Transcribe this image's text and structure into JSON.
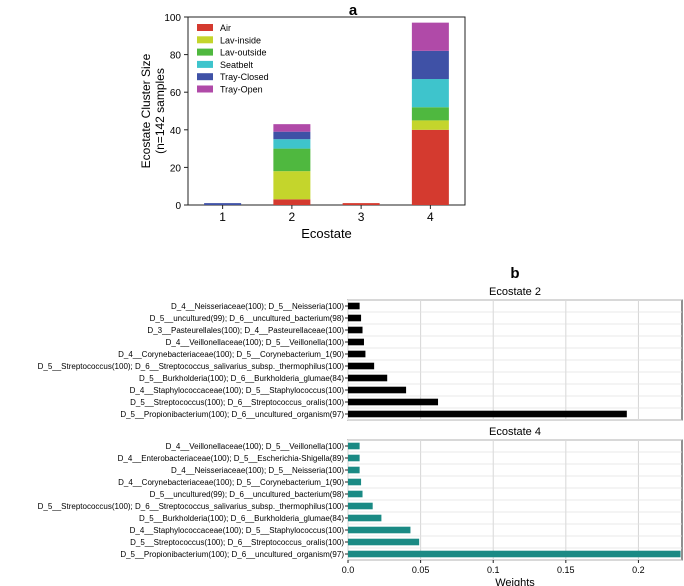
{
  "panel_labels": {
    "a": "a",
    "b": "b"
  },
  "chart_data": [
    {
      "type": "bar",
      "stacked": true,
      "panel": "a",
      "title": "",
      "xlabel": "Ecostate",
      "ylabel_lines": [
        "Ecostate Cluster Size",
        "(n=142 samples"
      ],
      "categories": [
        "1",
        "2",
        "3",
        "4"
      ],
      "ylim": [
        0,
        100
      ],
      "yticks": [
        0,
        20,
        40,
        60,
        80,
        100
      ],
      "legend_position": "top-left",
      "series": [
        {
          "name": "Air",
          "color": "#d43a2f",
          "values": [
            0,
            3,
            1,
            40
          ]
        },
        {
          "name": "Lav-inside",
          "color": "#c4d52c",
          "values": [
            0,
            15,
            0,
            5
          ]
        },
        {
          "name": "Lav-outside",
          "color": "#4fb83f",
          "values": [
            0,
            12,
            0,
            7
          ]
        },
        {
          "name": "Seatbelt",
          "color": "#3ec4cc",
          "values": [
            0,
            5,
            0,
            15
          ]
        },
        {
          "name": "Tray-Closed",
          "color": "#3f51a6",
          "values": [
            1,
            4,
            0,
            15
          ]
        },
        {
          "name": "Tray-Open",
          "color": "#b04aa8",
          "values": [
            0,
            4,
            0,
            15
          ]
        }
      ]
    },
    {
      "type": "barh",
      "panel": "b",
      "title": "Ecostate 2",
      "color": "#000000",
      "xlim": [
        0,
        0.23
      ],
      "categories": [
        "D_4__Neisseriaceae(100); D_5__Neisseria(100)",
        "D_5__uncultured(99); D_6__uncultured_bacterium(98)",
        "D_3__Pasteurellales(100); D_4__Pasteurellaceae(100)",
        "D_4__Veillonellaceae(100); D_5__Veillonella(100)",
        "D_4__Corynebacteriaceae(100); D_5__Corynebacterium_1(90)",
        "D_5__Streptococcus(100); D_6__Streptococcus_salivarius_subsp._thermophilus(100)",
        "D_5__Burkholderia(100); D_6__Burkholderia_glumae(84)",
        "D_4__Staphylococcaceae(100); D_5__Staphylococcus(100)",
        "D_5__Streptococcus(100); D_6__Streptococcus_oralis(100)",
        "D_5__Propionibacterium(100); D_6__uncultured_organism(97)"
      ],
      "values": [
        0.008,
        0.009,
        0.01,
        0.011,
        0.012,
        0.018,
        0.027,
        0.04,
        0.062,
        0.192
      ]
    },
    {
      "type": "barh",
      "panel": "b",
      "title": "Ecostate 4",
      "color": "#1a8a84",
      "xlabel": "Weights",
      "xlim": [
        0,
        0.23
      ],
      "xticks": [
        0.0,
        0.05,
        0.1,
        0.15,
        0.2
      ],
      "xtick_labels": [
        "0.0",
        "0.05",
        "0.1",
        "0.15",
        "0.2"
      ],
      "categories": [
        "D_4__Veillonellaceae(100); D_5__Veillonella(100)",
        "D_4__Enterobacteriaceae(100); D_5__Escherichia-Shigella(89)",
        "D_4__Neisseriaceae(100); D_5__Neisseria(100)",
        "D_4__Corynebacteriaceae(100); D_5__Corynebacterium_1(90)",
        "D_5__uncultured(99); D_6__uncultured_bacterium(98)",
        "D_5__Streptococcus(100); D_6__Streptococcus_salivarius_subsp._thermophilus(100)",
        "D_5__Burkholderia(100); D_6__Burkholderia_glumae(84)",
        "D_4__Staphylococcaceae(100); D_5__Staphylococcus(100)",
        "D_5__Streptococcus(100); D_6__Streptococcus_oralis(100)",
        "D_5__Propionibacterium(100); D_6__uncultured_organism(97)"
      ],
      "values": [
        0.008,
        0.008,
        0.008,
        0.009,
        0.01,
        0.017,
        0.023,
        0.043,
        0.049,
        0.229
      ]
    }
  ]
}
